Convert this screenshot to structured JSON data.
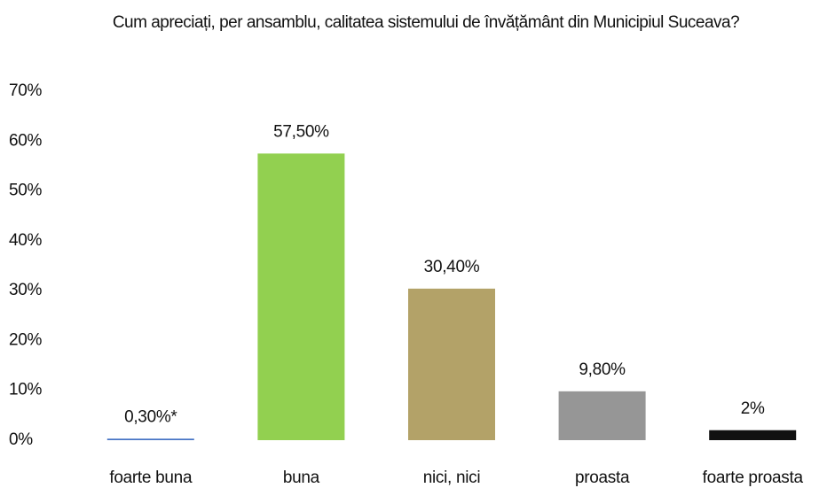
{
  "chart_data": {
    "type": "bar",
    "title": "Cum apreciați, per ansamblu, calitatea sistemului de învățământ din Municipiul Suceava?",
    "categories": [
      "foarte buna",
      "buna",
      "nici, nici",
      "proasta",
      "foarte proasta"
    ],
    "values": [
      0.3,
      57.5,
      30.4,
      9.8,
      2
    ],
    "value_labels": [
      "0,30%*",
      "57,50%",
      "30,40%",
      "9,80%",
      "2%"
    ],
    "colors": [
      "#4472c4",
      "#92d050",
      "#b3a268",
      "#969696",
      "#111111"
    ],
    "ylim": [
      0,
      70
    ],
    "yticks": [
      {
        "value": 0,
        "label": "0%"
      },
      {
        "value": 10,
        "label": "10%"
      },
      {
        "value": 20,
        "label": "20%"
      },
      {
        "value": 30,
        "label": "30%"
      },
      {
        "value": 40,
        "label": "40%"
      },
      {
        "value": 50,
        "label": "50%"
      },
      {
        "value": 60,
        "label": "60%"
      },
      {
        "value": 70,
        "label": "70%"
      }
    ],
    "grid": false
  }
}
